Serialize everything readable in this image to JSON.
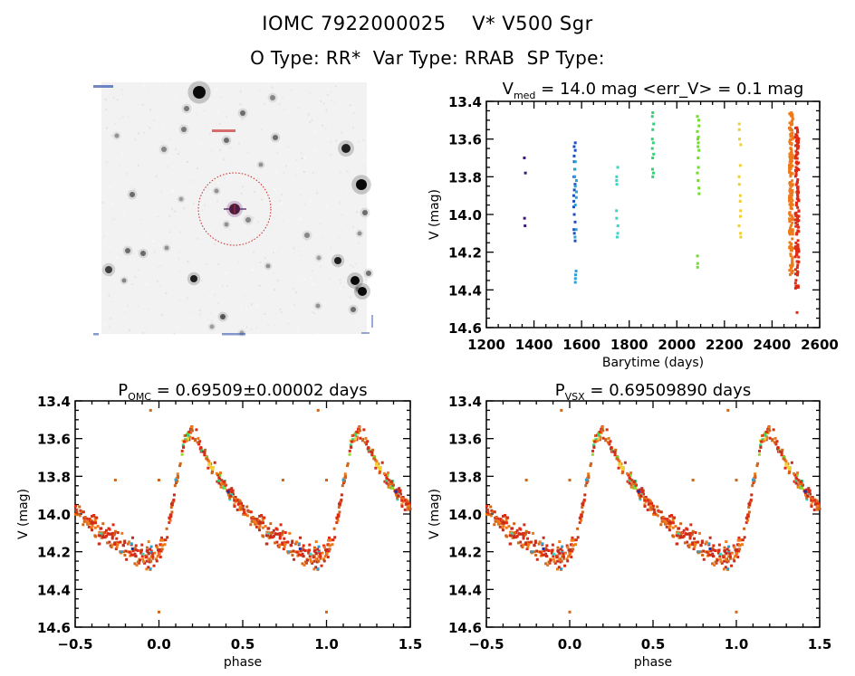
{
  "header": {
    "line1": "IOMC 7922000025    V* V500 Sgr",
    "line2": "O Type: RR*  Var Type: RRAB  SP Type:"
  },
  "image_panel": {
    "description": "sky-field-image",
    "marker": "target-crosshair-with-circle",
    "marker_color": "#cc2222"
  },
  "chart_data": [
    {
      "type": "scatter",
      "id": "time-series",
      "title": "V_med = 14.0 mag <err_V> = 0.1 mag",
      "title_main": "V",
      "title_sub": "med",
      "title_rest": " = 14.0 mag <err_V> = 0.1 mag",
      "xlabel": "Barytime (days)",
      "ylabel": "V (mag)",
      "xlim": [
        1200,
        2600
      ],
      "ylim": [
        13.4,
        14.6
      ],
      "y_inverted": true,
      "xticks": [
        1200,
        1400,
        1600,
        1800,
        2000,
        2200,
        2400,
        2600
      ],
      "xtick_labels": [
        "1200",
        "1400",
        "1600",
        "1800",
        "2000",
        "2200",
        "2400",
        "2600"
      ],
      "yticks": [
        13.4,
        13.6,
        13.8,
        14.0,
        14.2,
        14.4,
        14.6
      ],
      "ytick_labels": [
        "13.4",
        "13.6",
        "13.8",
        "14.0",
        "14.2",
        "14.4",
        "14.6"
      ],
      "clusters": [
        {
          "x": 1362,
          "color": "#3a1a7a",
          "y": [
            13.7,
            13.78,
            14.02,
            14.06
          ]
        },
        {
          "x": 1570,
          "color": "#1f4fbf",
          "y": [
            13.62,
            13.64,
            13.66,
            13.69,
            13.72,
            13.76,
            13.8,
            13.84,
            13.87,
            13.9,
            13.93,
            13.96,
            14.0,
            14.04,
            14.08,
            14.1,
            14.14
          ]
        },
        {
          "x": 1575,
          "color": "#2aa0d8",
          "y": [
            13.72,
            13.76,
            13.8,
            13.82,
            13.85,
            13.88,
            13.91,
            13.95,
            14.08,
            14.12,
            14.3,
            14.32,
            14.34,
            14.36
          ]
        },
        {
          "x": 1750,
          "color": "#39d6c6",
          "y": [
            13.75,
            13.8,
            13.82,
            13.84,
            13.98,
            14.02,
            14.06,
            14.1,
            14.12
          ]
        },
        {
          "x": 1900,
          "color": "#36cf7a",
          "y": [
            13.46,
            13.48,
            13.52,
            13.55,
            13.6,
            13.62,
            13.65,
            13.68,
            13.7,
            13.76,
            13.78,
            13.8
          ]
        },
        {
          "x": 2090,
          "color": "#6fdc2a",
          "y": [
            13.48,
            13.5,
            13.53,
            13.56,
            13.59,
            13.6,
            13.62,
            13.64,
            13.66,
            13.7,
            13.75,
            13.78,
            13.82,
            13.86,
            13.89,
            14.22,
            14.26,
            14.28
          ]
        },
        {
          "x": 2265,
          "color": "#f0d030",
          "y": [
            13.52,
            13.55,
            13.6,
            13.63,
            13.74,
            13.8,
            13.84,
            13.9,
            13.93,
            13.98,
            14.01,
            14.06,
            14.1,
            14.12
          ]
        },
        {
          "x": 2480,
          "color": "#ee7a1a",
          "y_range": [
            13.45,
            14.33
          ],
          "count": 160
        },
        {
          "x": 2505,
          "color": "#e02a12",
          "y_range": [
            13.54,
            14.4
          ],
          "count": 120,
          "outliers": [
            14.52
          ]
        }
      ]
    },
    {
      "type": "scatter",
      "id": "phase-omc",
      "title_main": "P",
      "title_sub": "OMC",
      "title_rest": " = 0.69509±0.00002 days",
      "xlabel": "phase",
      "ylabel": "V (mag)",
      "xlim": [
        -0.5,
        1.5
      ],
      "ylim": [
        13.4,
        14.6
      ],
      "y_inverted": true,
      "xticks": [
        -0.5,
        0.0,
        0.5,
        1.0,
        1.5
      ],
      "xtick_labels": [
        "−0.5",
        "0.0",
        "0.5",
        "1.0",
        "1.5"
      ],
      "yticks": [
        13.4,
        13.6,
        13.8,
        14.0,
        14.2,
        14.4,
        14.6
      ],
      "ytick_labels": [
        "13.4",
        "13.6",
        "13.8",
        "14.0",
        "14.2",
        "14.4",
        "14.6"
      ],
      "light_curve_model": {
        "phase": [
          0.0,
          0.05,
          0.1,
          0.15,
          0.19,
          0.25,
          0.35,
          0.45,
          0.55,
          0.65,
          0.75,
          0.85,
          0.95,
          1.0
        ],
        "mag": [
          14.2,
          14.1,
          13.85,
          13.62,
          13.55,
          13.65,
          13.8,
          13.92,
          14.02,
          14.1,
          14.15,
          14.2,
          14.24,
          14.2
        ]
      },
      "outliers": [
        [
          -0.05,
          13.45
        ],
        [
          -0.26,
          13.82
        ],
        [
          0.0,
          13.82
        ],
        [
          0.0,
          14.52
        ]
      ],
      "colors": [
        "#e02a12",
        "#ee7a1a",
        "#d0661a",
        "#c03020",
        "#1f2fa0",
        "#2aa0d8",
        "#39d6c6",
        "#6fdc2a",
        "#f0d030"
      ]
    },
    {
      "type": "scatter",
      "id": "phase-vsx",
      "title_main": "P",
      "title_sub": "VSX",
      "title_rest": " = 0.69509890 days",
      "xlabel": "phase",
      "ylabel": "V (mag)",
      "xlim": [
        -0.5,
        1.5
      ],
      "ylim": [
        13.4,
        14.6
      ],
      "y_inverted": true,
      "xticks": [
        -0.5,
        0.0,
        0.5,
        1.0,
        1.5
      ],
      "xtick_labels": [
        "−0.5",
        "0.0",
        "0.5",
        "1.0",
        "1.5"
      ],
      "yticks": [
        13.4,
        13.6,
        13.8,
        14.0,
        14.2,
        14.4,
        14.6
      ],
      "ytick_labels": [
        "13.4",
        "13.6",
        "13.8",
        "14.0",
        "14.2",
        "14.4",
        "14.6"
      ],
      "light_curve_model": {
        "phase": [
          0.0,
          0.05,
          0.1,
          0.15,
          0.19,
          0.25,
          0.35,
          0.45,
          0.55,
          0.65,
          0.75,
          0.85,
          0.95,
          1.0
        ],
        "mag": [
          14.2,
          14.1,
          13.85,
          13.62,
          13.55,
          13.65,
          13.8,
          13.92,
          14.02,
          14.1,
          14.15,
          14.2,
          14.24,
          14.2
        ]
      },
      "outliers": [
        [
          -0.05,
          13.45
        ],
        [
          -0.26,
          13.82
        ],
        [
          0.0,
          13.82
        ],
        [
          0.0,
          14.52
        ]
      ],
      "colors": [
        "#e02a12",
        "#ee7a1a",
        "#d0661a",
        "#c03020",
        "#1f2fa0",
        "#2aa0d8",
        "#39d6c6",
        "#6fdc2a",
        "#f0d030"
      ]
    }
  ]
}
